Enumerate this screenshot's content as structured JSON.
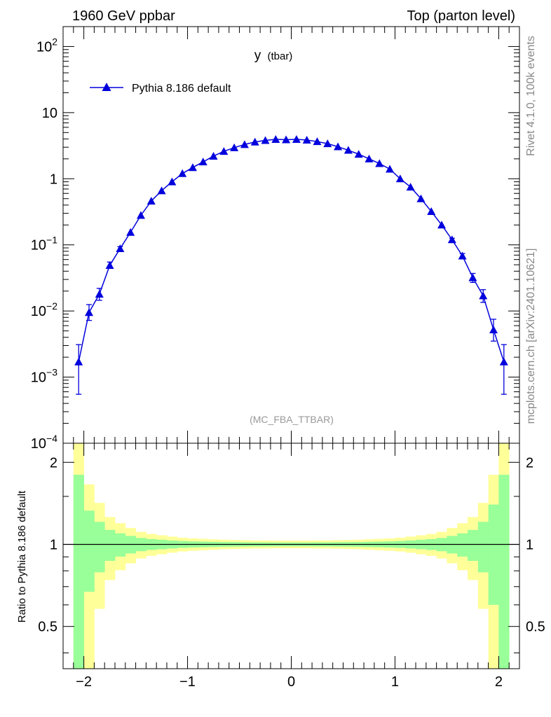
{
  "header": {
    "left": "1960 GeV ppbar",
    "right": "Top (parton level)"
  },
  "side_labels": {
    "rivet": "Rivet 4.1.0,  100k events",
    "mcplots": "mcplots.cern.ch [arXiv:2401.10621]"
  },
  "colors": {
    "series": "#0000dd",
    "band_inner": "#99ff99",
    "band_outer": "#ffff99",
    "analysis_label": "#999999"
  },
  "chart_data": [
    {
      "type": "line",
      "panel": "main",
      "title_main": "y",
      "title_sub": "(tbar)",
      "analysis_label": "(MC_FBA_TTBAR)",
      "xlim": [
        -2.2,
        2.2
      ],
      "ylim": [
        0.0001,
        200
      ],
      "yscale": "log",
      "y_ticks": [
        {
          "value": 0.0001,
          "base": "10",
          "exp": "−4"
        },
        {
          "value": 0.001,
          "base": "10",
          "exp": "−3"
        },
        {
          "value": 0.01,
          "base": "10",
          "exp": "−2"
        },
        {
          "value": 0.1,
          "base": "10",
          "exp": "−1"
        },
        {
          "value": 1,
          "base": "1",
          "exp": ""
        },
        {
          "value": 10,
          "base": "10",
          "exp": ""
        },
        {
          "value": 100,
          "base": "10",
          "exp": "2"
        }
      ],
      "series": [
        {
          "name": "Pythia 8.186 default",
          "marker": "triangle",
          "x": [
            -2.05,
            -1.95,
            -1.85,
            -1.75,
            -1.65,
            -1.55,
            -1.45,
            -1.35,
            -1.25,
            -1.15,
            -1.05,
            -0.95,
            -0.85,
            -0.75,
            -0.65,
            -0.55,
            -0.45,
            -0.35,
            -0.25,
            -0.15,
            -0.05,
            0.05,
            0.15,
            0.25,
            0.35,
            0.45,
            0.55,
            0.65,
            0.75,
            0.85,
            0.95,
            1.05,
            1.15,
            1.25,
            1.35,
            1.45,
            1.55,
            1.65,
            1.75,
            1.85,
            1.95,
            2.05
          ],
          "y": [
            0.0017,
            0.0095,
            0.018,
            0.049,
            0.088,
            0.155,
            0.28,
            0.46,
            0.66,
            0.9,
            1.2,
            1.48,
            1.8,
            2.2,
            2.6,
            2.95,
            3.3,
            3.6,
            3.8,
            3.95,
            3.9,
            3.95,
            3.85,
            3.65,
            3.4,
            3.05,
            2.7,
            2.35,
            2.0,
            1.7,
            1.4,
            1.0,
            0.75,
            0.5,
            0.32,
            0.2,
            0.12,
            0.068,
            0.032,
            0.017,
            0.0052,
            0.0017
          ],
          "y_low": [
            0.00055,
            0.0072,
            0.0145,
            0.044,
            0.082,
            0.148,
            0.27,
            0.45,
            0.65,
            0.89,
            1.19,
            1.47,
            1.79,
            2.19,
            2.59,
            2.94,
            3.29,
            3.59,
            3.79,
            3.94,
            3.89,
            3.94,
            3.84,
            3.64,
            3.39,
            3.04,
            2.69,
            2.34,
            1.99,
            1.69,
            1.39,
            0.99,
            0.74,
            0.49,
            0.31,
            0.195,
            0.114,
            0.062,
            0.027,
            0.0135,
            0.0035,
            0.00055
          ],
          "y_high": [
            0.0031,
            0.0125,
            0.022,
            0.055,
            0.094,
            0.162,
            0.29,
            0.47,
            0.67,
            0.91,
            1.21,
            1.49,
            1.81,
            2.21,
            2.61,
            2.96,
            3.31,
            3.61,
            3.81,
            3.96,
            3.91,
            3.96,
            3.86,
            3.66,
            3.41,
            3.06,
            2.71,
            2.36,
            2.01,
            1.71,
            1.41,
            1.01,
            0.76,
            0.51,
            0.33,
            0.205,
            0.126,
            0.074,
            0.037,
            0.021,
            0.0075,
            0.0031
          ]
        }
      ]
    },
    {
      "type": "area",
      "panel": "ratio",
      "ylabel": "Ratio to Pythia 8.186 default",
      "xlim": [
        -2.2,
        2.2
      ],
      "ylim": [
        0.35,
        2.35
      ],
      "yscale": "log",
      "y_ticks": [
        0.5,
        1,
        2
      ],
      "x_ticks": [
        {
          "value": -2,
          "label": "−2"
        },
        {
          "value": -1,
          "label": "−1"
        },
        {
          "value": 0,
          "label": "0"
        },
        {
          "value": 1,
          "label": "1"
        },
        {
          "value": 2,
          "label": "2"
        }
      ],
      "bin_edges": [
        -2.1,
        -2.0,
        -1.9,
        -1.8,
        -1.7,
        -1.6,
        -1.5,
        -1.4,
        -1.3,
        -1.2,
        -1.1,
        -1.0,
        -0.9,
        -0.8,
        -0.7,
        -0.6,
        -0.5,
        -0.4,
        -0.3,
        -0.2,
        -0.1,
        0.0,
        0.1,
        0.2,
        0.3,
        0.4,
        0.5,
        0.6,
        0.7,
        0.8,
        0.9,
        1.0,
        1.1,
        1.2,
        1.3,
        1.4,
        1.5,
        1.6,
        1.7,
        1.8,
        1.9,
        2.0,
        2.1
      ],
      "band_inner_rel": [
        0.8,
        0.33,
        0.21,
        0.13,
        0.098,
        0.074,
        0.056,
        0.046,
        0.04,
        0.034,
        0.029,
        0.026,
        0.024,
        0.022,
        0.02,
        0.019,
        0.018,
        0.017,
        0.017,
        0.016,
        0.016,
        0.016,
        0.016,
        0.017,
        0.017,
        0.018,
        0.019,
        0.02,
        0.022,
        0.024,
        0.026,
        0.029,
        0.034,
        0.04,
        0.046,
        0.056,
        0.074,
        0.098,
        0.13,
        0.21,
        0.4,
        0.8
      ],
      "band_outer_rel": [
        1.5,
        0.66,
        0.42,
        0.26,
        0.196,
        0.148,
        0.112,
        0.092,
        0.08,
        0.068,
        0.058,
        0.052,
        0.048,
        0.044,
        0.04,
        0.038,
        0.036,
        0.034,
        0.034,
        0.032,
        0.032,
        0.032,
        0.032,
        0.034,
        0.034,
        0.036,
        0.038,
        0.04,
        0.044,
        0.048,
        0.052,
        0.058,
        0.068,
        0.08,
        0.092,
        0.112,
        0.148,
        0.196,
        0.26,
        0.42,
        0.8,
        1.5
      ],
      "reference_line": 1
    }
  ]
}
